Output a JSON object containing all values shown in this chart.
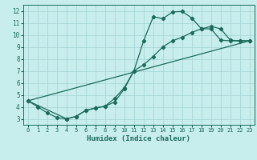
{
  "title": "",
  "xlabel": "Humidex (Indice chaleur)",
  "bg_color": "#c8eded",
  "grid_color": "#a8d8d8",
  "line_color": "#1a6b5a",
  "xlim": [
    -0.5,
    23.5
  ],
  "ylim": [
    2.5,
    12.5
  ],
  "xticks": [
    0,
    1,
    2,
    3,
    4,
    5,
    6,
    7,
    8,
    9,
    10,
    11,
    12,
    13,
    14,
    15,
    16,
    17,
    18,
    19,
    20,
    21,
    22,
    23
  ],
  "yticks": [
    3,
    4,
    5,
    6,
    7,
    8,
    9,
    10,
    11,
    12
  ],
  "line1_x": [
    0,
    1,
    2,
    3,
    4,
    5,
    6,
    7,
    8,
    9,
    10,
    11,
    12,
    13,
    14,
    15,
    16,
    17,
    18,
    19,
    20,
    21,
    22,
    23
  ],
  "line1_y": [
    4.5,
    4.0,
    3.5,
    3.1,
    3.0,
    3.2,
    3.7,
    3.9,
    4.05,
    4.4,
    5.5,
    7.0,
    9.5,
    11.5,
    11.35,
    11.9,
    11.95,
    11.4,
    10.5,
    10.5,
    9.55,
    9.5,
    9.5,
    9.5
  ],
  "line2_x": [
    0,
    4,
    5,
    6,
    7,
    8,
    9,
    10,
    11,
    12,
    13,
    14,
    15,
    16,
    17,
    18,
    19,
    20,
    21,
    22,
    23
  ],
  "line2_y": [
    4.5,
    3.0,
    3.2,
    3.7,
    3.9,
    4.05,
    4.7,
    5.6,
    7.0,
    7.5,
    8.2,
    9.0,
    9.5,
    9.8,
    10.2,
    10.5,
    10.7,
    10.5,
    9.55,
    9.5,
    9.5
  ],
  "line3_x": [
    0,
    23
  ],
  "line3_y": [
    4.5,
    9.5
  ]
}
